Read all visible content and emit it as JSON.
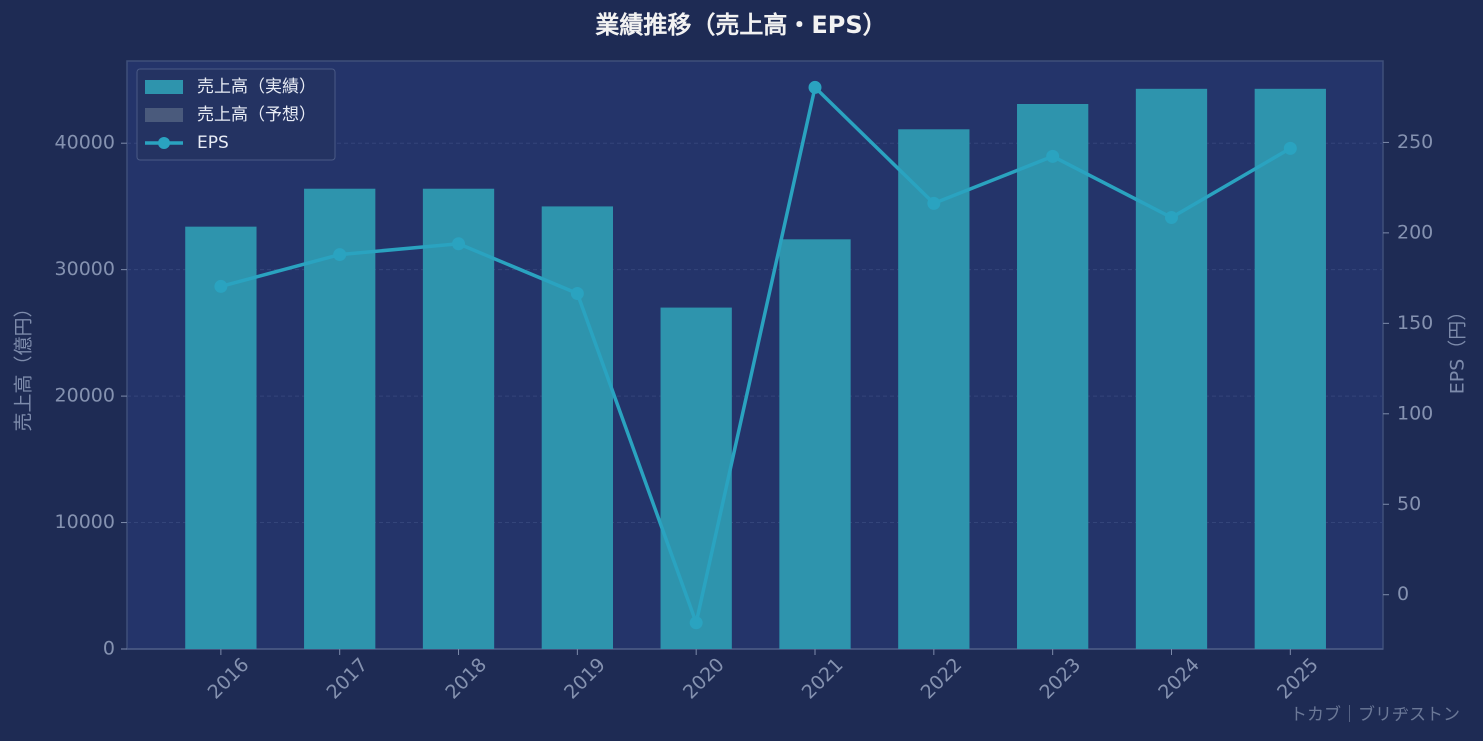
{
  "chart_data": {
    "type": "combo",
    "title": "業績推移（売上高・EPS）",
    "categories": [
      "2016",
      "2017",
      "2018",
      "2019",
      "2020",
      "2021",
      "2022",
      "2023",
      "2024",
      "2025"
    ],
    "series": [
      {
        "name": "売上高（実績）",
        "color": "#2e94ad",
        "kind": "bar",
        "values": [
          33400,
          36400,
          36400,
          35000,
          27000,
          32400,
          41100,
          43100,
          44300,
          44300
        ]
      },
      {
        "name": "売上高（予想）",
        "color": "#4a5a7c",
        "kind": "bar",
        "values": [
          null,
          null,
          null,
          null,
          null,
          null,
          null,
          null,
          null,
          null
        ]
      },
      {
        "name": "EPS",
        "color": "#2aa3c0",
        "kind": "line",
        "axis": "y2",
        "values": [
          170.4,
          188.0,
          194.0,
          166.5,
          -15.5,
          280.4,
          216.3,
          242.3,
          208.5,
          246.7
        ]
      }
    ],
    "ylabel": "売上高（億円）",
    "y2label": "EPS（円）",
    "ylim": [
      0,
      46500
    ],
    "yticks": [
      0,
      10000,
      20000,
      30000,
      40000
    ],
    "y2lim": [
      -30,
      295
    ],
    "y2ticks": [
      0,
      50,
      100,
      150,
      200,
      250
    ],
    "grid": true,
    "legend": "upper left",
    "watermark": "トカブ｜ブリヂストン"
  }
}
